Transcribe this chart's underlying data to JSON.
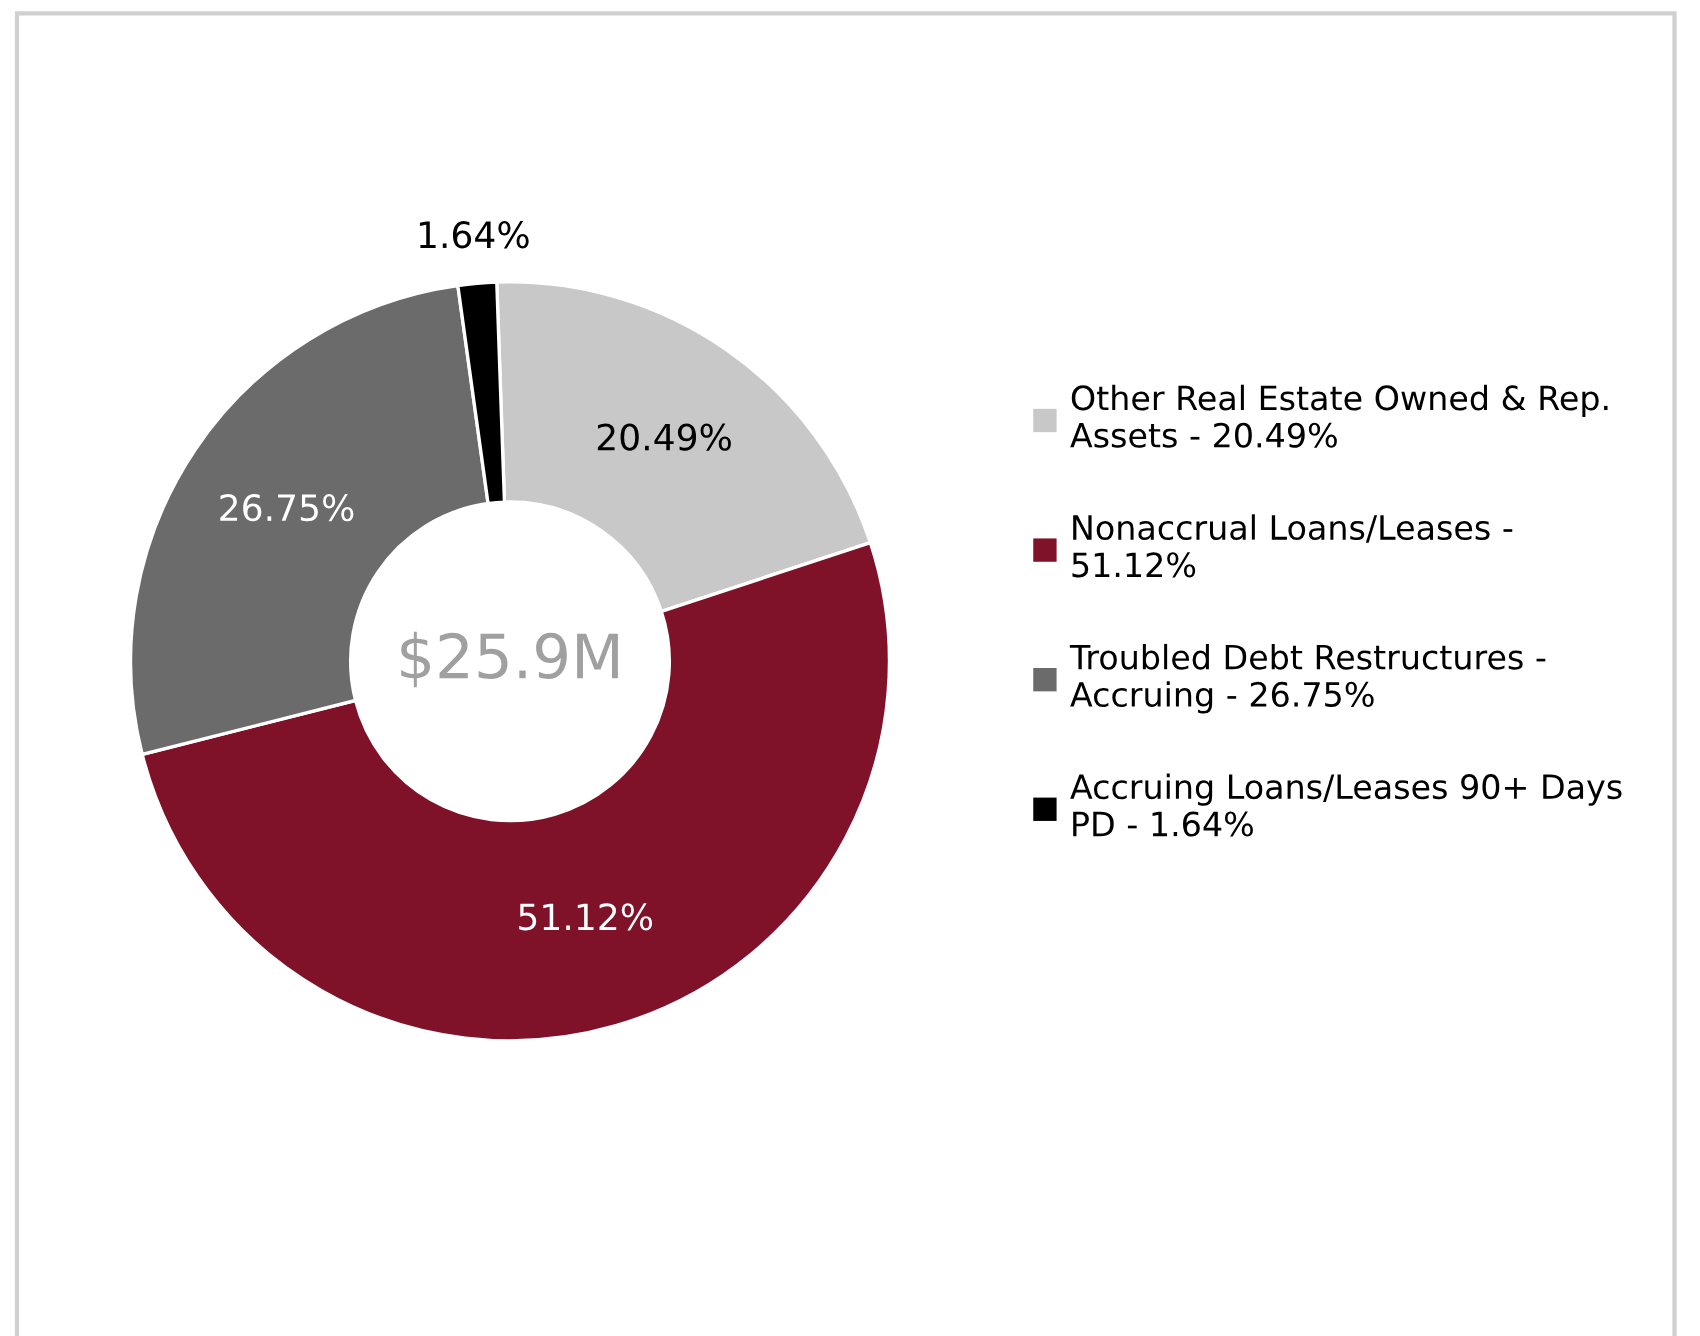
{
  "chart_data": {
    "type": "donut",
    "categories": [
      "Other Real Estate Owned & Rep. Assets - 20.49%",
      "Nonaccrual Loans/Leases - 51.12%",
      "Troubled Debt Restructures - Accruing - 26.75%",
      "Accruing Loans/Leases 90+ Days PD - 1.64%"
    ],
    "values": [
      20.49,
      51.12,
      26.75,
      1.64
    ],
    "value_labels": [
      "20.49%",
      "51.12%",
      "26.75%",
      "1.64%"
    ],
    "colors": [
      "#c8c8c8",
      "#7f1129",
      "#6b6b6b",
      "#000000"
    ],
    "annotations": [
      "$25.9M"
    ],
    "legend": "right"
  }
}
